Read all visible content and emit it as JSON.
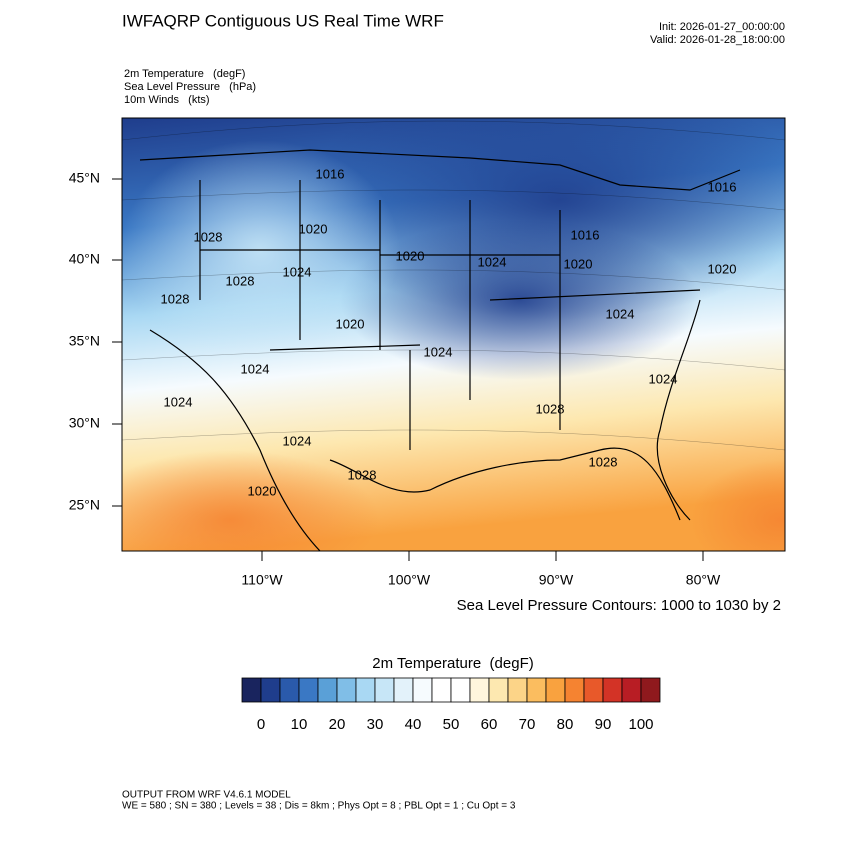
{
  "header": {
    "title": "IWFAQRP Contiguous US Real Time WRF",
    "init": "Init: 2026-01-27_00:00:00",
    "valid": "Valid: 2026-01-28_18:00:00"
  },
  "fields": [
    "2m Temperature   (degF)",
    "Sea Level Pressure   (hPa)",
    "10m Winds   (kts)"
  ],
  "map": {
    "lat_labels": [
      "45°N",
      "40°N",
      "35°N",
      "30°N",
      "25°N"
    ],
    "lon_labels": [
      "110°W",
      "100°W",
      "90°W",
      "80°W"
    ],
    "contour_labels": [
      "1016",
      "1028",
      "1020",
      "1024",
      "1028",
      "1028",
      "1020",
      "1024",
      "1024",
      "1024",
      "1020",
      "1028",
      "1020",
      "1024",
      "1020",
      "1024",
      "1028",
      "1028",
      "1024",
      "1024",
      "1016",
      "1016",
      "1020"
    ],
    "contour_note": "Sea Level Pressure Contours: 1000 to 1030 by 2"
  },
  "colorbar": {
    "title": "2m Temperature  (degF)",
    "colors": [
      "#19245e",
      "#1f3d8c",
      "#2a5aab",
      "#3a78c4",
      "#5aa0d7",
      "#80bee7",
      "#a9d8f3",
      "#c7e6f7",
      "#e3f2fa",
      "#f6fbfe",
      "#ffffff",
      "#ffffff",
      "#fff6dd",
      "#fde8b0",
      "#fcd488",
      "#fbbd5f",
      "#f9a23f",
      "#f58331",
      "#e8592a",
      "#d33326",
      "#b81d24",
      "#8f191d"
    ],
    "ticks": [
      0,
      10,
      20,
      30,
      40,
      50,
      60,
      70,
      80,
      90,
      100
    ]
  },
  "footer": {
    "model": "OUTPUT FROM WRF V4.6.1 MODEL",
    "settings": "WE = 580 ; SN = 380 ; Levels = 38 ; Dis = 8km ; Phys Opt = 8 ; PBL Opt = 1 ; Cu Opt = 3"
  }
}
